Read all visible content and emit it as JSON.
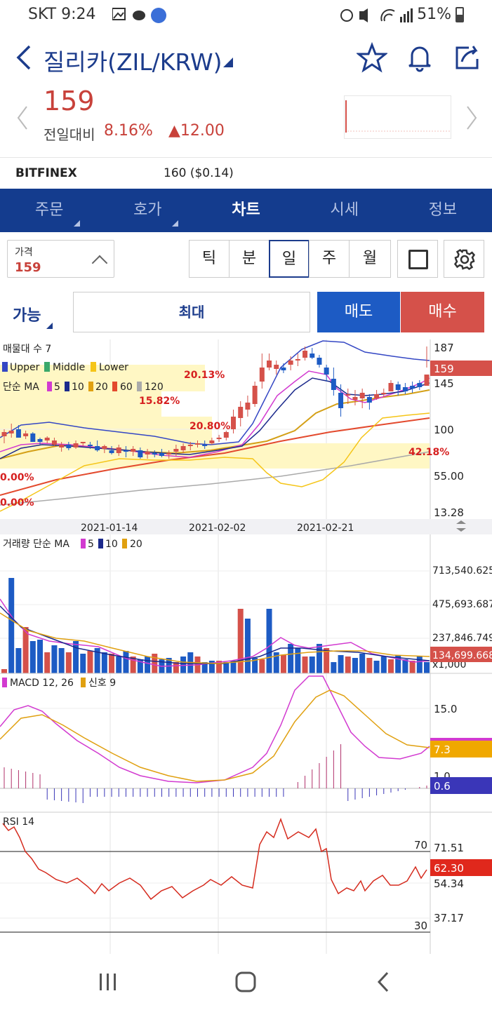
{
  "status_bar": {
    "carrier_time": "SKT 9:24",
    "battery": "51%",
    "battery_level": 0.51
  },
  "header": {
    "title": "질리카(ZIL/KRW)"
  },
  "quote": {
    "price": "159",
    "change_label": "전일대비",
    "change_pct": "8.16%",
    "change_amount": "▲12.00"
  },
  "exchange": {
    "name": "BITFINEX",
    "value": "160 ($0.14)"
  },
  "tabs": [
    {
      "label": "주문",
      "active": false,
      "dropdown": true
    },
    {
      "label": "호가",
      "active": false,
      "dropdown": true
    },
    {
      "label": "차트",
      "active": true,
      "dropdown": false
    },
    {
      "label": "시세",
      "active": false,
      "dropdown": false
    },
    {
      "label": "정보",
      "active": false,
      "dropdown": false
    }
  ],
  "controls": {
    "price_label": "가격",
    "price_value": "159",
    "periods": [
      "틱",
      "분",
      "일",
      "주",
      "월"
    ],
    "selected_period": "일"
  },
  "order": {
    "able_label": "가능",
    "max_label": "최대",
    "sell_label": "매도",
    "buy_label": "매수"
  },
  "colors": {
    "brand": "#143c8e",
    "up": "#d5514a",
    "down": "#1d5bc4"
  },
  "chart_data": [
    {
      "type": "candlestick",
      "legend_1": "매물대 수 7",
      "legend_2": [
        "Upper",
        "Middle",
        "Lower"
      ],
      "legend_3_prefix": "단순 MA",
      "ma_periods": [
        "5",
        "10",
        "20",
        "60",
        "120"
      ],
      "y_ticks": [
        "187",
        "145",
        "100",
        "55.00",
        "13.28"
      ],
      "current_price": "159",
      "x_dates": [
        "2021-01-14",
        "2021-02-02",
        "2021-02-21"
      ],
      "volume_profile_labels": [
        "20.13%",
        "15.82%",
        "20.80%",
        "42.18%",
        "0.00%",
        "0.00%"
      ],
      "ylim": [
        13.28,
        187
      ]
    },
    {
      "type": "bar",
      "legend_prefix": "거래량 단순 MA",
      "ma_periods": [
        "5",
        "10",
        "20"
      ],
      "y_ticks": [
        "713,540.625",
        "475,693.687",
        "237,846.749",
        "x1,000"
      ],
      "current_value": "134,699.668"
    },
    {
      "type": "line",
      "legend": [
        "MACD 12, 26",
        "신호 9"
      ],
      "y_ticks": [
        "15.0",
        "1.0"
      ],
      "macd_value": "7.3",
      "hist_value": "0.6"
    },
    {
      "type": "line",
      "legend": "RSI 14",
      "levels": [
        "70",
        "30"
      ],
      "y_ticks": [
        "71.51",
        "54.34",
        "37.17"
      ],
      "current_value": "62.30"
    }
  ],
  "bottom_nav": {
    "recents": "recents-icon",
    "home": "home-icon",
    "back": "back-icon"
  }
}
